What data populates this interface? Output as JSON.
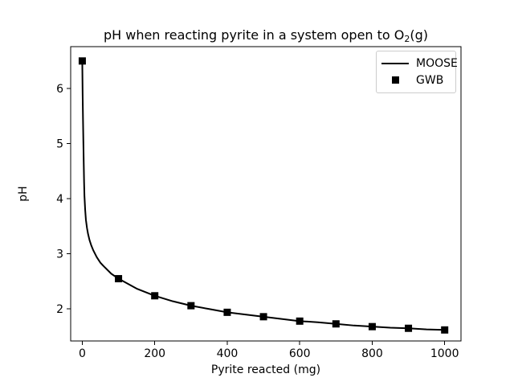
{
  "figure": {
    "background": "#ffffff",
    "foreground": "#000000"
  },
  "chart_data": {
    "type": "line",
    "title": {
      "text": "pH when reacting pyrite in a system open to O2(g)",
      "pre": "pH when reacting pyrite in a system open to O",
      "sub": "2",
      "post": "(g)"
    },
    "xlabel": "Pyrite reacted (mg)",
    "ylabel": "pH",
    "xlim": [
      -32,
      1045
    ],
    "ylim": [
      1.42,
      6.76
    ],
    "xticks": [
      0,
      200,
      400,
      600,
      800,
      1000
    ],
    "yticks": [
      2,
      3,
      4,
      5,
      6
    ],
    "grid": false,
    "legend": {
      "position": "upper right",
      "border_color": "#cccccc"
    },
    "series": [
      {
        "name": "MOOSE",
        "type": "line",
        "color": "#000000",
        "linewidth": 2,
        "x": [
          0,
          1,
          2,
          3,
          4,
          5,
          6,
          8,
          10,
          13,
          16,
          20,
          25,
          30,
          40,
          50,
          60,
          80,
          100,
          150,
          200,
          250,
          300,
          350,
          400,
          450,
          500,
          550,
          600,
          650,
          700,
          750,
          800,
          850,
          900,
          950,
          1000
        ],
        "y": [
          6.5,
          5.9,
          5.45,
          5.05,
          4.65,
          4.3,
          4.05,
          3.8,
          3.62,
          3.47,
          3.36,
          3.25,
          3.15,
          3.07,
          2.94,
          2.84,
          2.77,
          2.64,
          2.55,
          2.37,
          2.24,
          2.14,
          2.06,
          2.0,
          1.94,
          1.9,
          1.86,
          1.82,
          1.78,
          1.76,
          1.73,
          1.7,
          1.68,
          1.66,
          1.65,
          1.63,
          1.62
        ]
      },
      {
        "name": "GWB",
        "type": "scatter",
        "color": "#000000",
        "marker": "square",
        "marker_size": 9,
        "x": [
          0,
          100,
          200,
          300,
          400,
          500,
          600,
          700,
          800,
          900,
          1000
        ],
        "y": [
          6.5,
          2.55,
          2.24,
          2.06,
          1.94,
          1.86,
          1.78,
          1.73,
          1.68,
          1.65,
          1.62
        ]
      }
    ]
  }
}
